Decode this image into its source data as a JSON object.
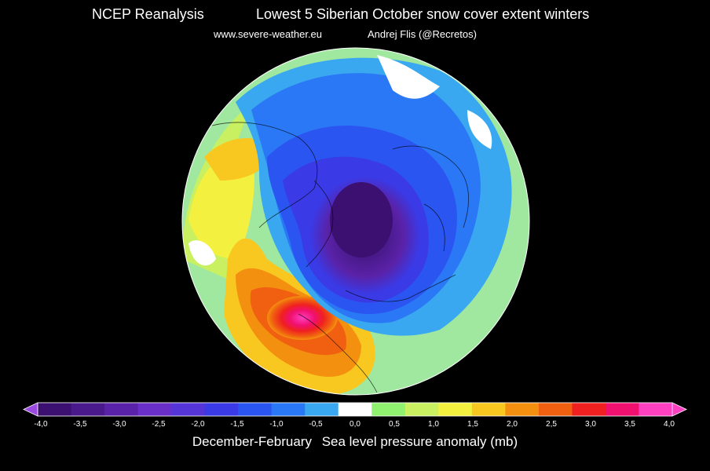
{
  "header": {
    "source": "NCEP Reanalysis",
    "title": "Lowest 5 Siberian October snow cover extent winters",
    "website": "www.severe-weather.eu",
    "author": "Andrej Flis (@Recretos)"
  },
  "legend": {
    "ticks": [
      "-4,0",
      "-3,5",
      "-3,0",
      "-2,5",
      "-2,0",
      "-1,5",
      "-1,0",
      "-0,5",
      "0,0",
      "0,5",
      "1,0",
      "1,5",
      "2,0",
      "2,5",
      "3,0",
      "3,5",
      "4,0"
    ],
    "period": "December-February",
    "variable": "Sea level pressure anomaly (mb)",
    "colors": [
      "#3c1070",
      "#4a1a8c",
      "#5a22a8",
      "#6a2fc8",
      "#5535d8",
      "#3a3ae6",
      "#2a55f0",
      "#2a78f5",
      "#3aa8f0",
      "#ffffff",
      "#90f070",
      "#c8f060",
      "#f4f040",
      "#f8c820",
      "#f49010",
      "#f06010",
      "#f02020",
      "#f01070",
      "#ff40c0"
    ]
  },
  "colors": {
    "background": "#000000",
    "ocean_far": "#a0e8a0"
  }
}
